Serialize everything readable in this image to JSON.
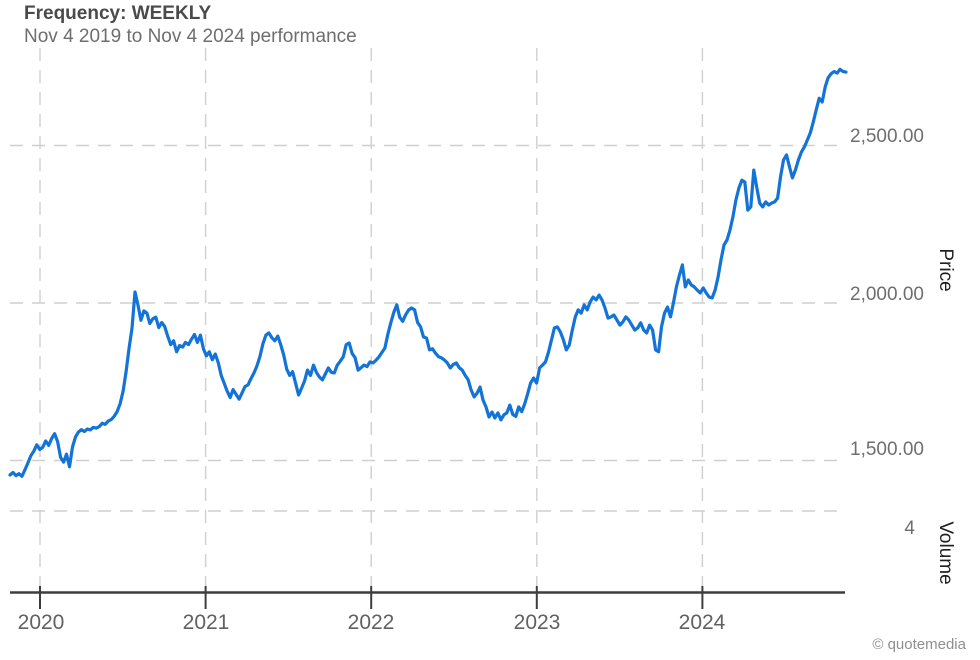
{
  "header": {
    "title": "Frequency: WEEKLY",
    "subtitle": "Nov 4 2019 to Nov 4 2024 performance"
  },
  "watermark": "© quotemedia",
  "chart_data": {
    "type": "line",
    "title": "Frequency: WEEKLY",
    "subtitle": "Nov 4 2019 to Nov 4 2024 performance",
    "legend": "none",
    "grid": "dashed",
    "line_color": "#1373d6",
    "grid_color": "#cfcfcf",
    "axis_color": "#3d3d3d",
    "x_start_year": 2019.82,
    "x_end_year": 2024.87,
    "x_ticks": [
      {
        "value": 2020,
        "label": "2020"
      },
      {
        "value": 2021,
        "label": "2021"
      },
      {
        "value": 2022,
        "label": "2022"
      },
      {
        "value": 2023,
        "label": "2023"
      },
      {
        "value": 2024,
        "label": "2024"
      }
    ],
    "price_axis": {
      "label": "Price",
      "ticks": [
        {
          "value": 2500,
          "label": "2,500.00"
        },
        {
          "value": 2000,
          "label": "2,000.00"
        },
        {
          "value": 1500,
          "label": "1,500.00"
        }
      ]
    },
    "volume_axis": {
      "label": "Volume",
      "ticks": [
        {
          "value": 4,
          "label": "4"
        }
      ]
    },
    "series": [
      {
        "name": "price",
        "frequency": "weekly",
        "values": [
          1454,
          1462,
          1452,
          1458,
          1450,
          1470,
          1492,
          1515,
          1530,
          1550,
          1535,
          1542,
          1562,
          1548,
          1570,
          1585,
          1560,
          1510,
          1495,
          1520,
          1480,
          1543,
          1575,
          1590,
          1598,
          1592,
          1600,
          1597,
          1605,
          1603,
          1608,
          1618,
          1615,
          1625,
          1630,
          1640,
          1655,
          1680,
          1720,
          1780,
          1855,
          1920,
          2035,
          1995,
          1945,
          1975,
          1968,
          1935,
          1950,
          1955,
          1922,
          1938,
          1925,
          1895,
          1868,
          1880,
          1845,
          1865,
          1860,
          1875,
          1868,
          1885,
          1900,
          1875,
          1898,
          1855,
          1832,
          1845,
          1820,
          1838,
          1810,
          1770,
          1745,
          1720,
          1700,
          1725,
          1710,
          1695,
          1715,
          1735,
          1740,
          1760,
          1778,
          1800,
          1830,
          1870,
          1898,
          1905,
          1890,
          1880,
          1895,
          1868,
          1835,
          1790,
          1770,
          1782,
          1745,
          1708,
          1730,
          1752,
          1787,
          1770,
          1803,
          1780,
          1765,
          1756,
          1775,
          1794,
          1780,
          1778,
          1803,
          1815,
          1829,
          1868,
          1873,
          1840,
          1826,
          1787,
          1795,
          1803,
          1798,
          1813,
          1810,
          1818,
          1829,
          1843,
          1857,
          1900,
          1937,
          1970,
          1994,
          1955,
          1942,
          1963,
          1978,
          1984,
          1978,
          1938,
          1924,
          1892,
          1889,
          1851,
          1855,
          1841,
          1830,
          1826,
          1819,
          1810,
          1794,
          1805,
          1810,
          1795,
          1787,
          1770,
          1756,
          1724,
          1702,
          1714,
          1733,
          1692,
          1670,
          1638,
          1654,
          1635,
          1651,
          1629,
          1645,
          1651,
          1676,
          1646,
          1640,
          1670,
          1655,
          1680,
          1712,
          1746,
          1762,
          1746,
          1794,
          1803,
          1813,
          1844,
          1883,
          1921,
          1924,
          1908,
          1883,
          1851,
          1867,
          1914,
          1956,
          1978,
          1968,
          1994,
          1978,
          2003,
          2019,
          2010,
          2025,
          2010,
          1984,
          1952,
          1956,
          1962,
          1946,
          1930,
          1940,
          1956,
          1946,
          1930,
          1914,
          1921,
          1937,
          1914,
          1905,
          1930,
          1914,
          1851,
          1845,
          1924,
          1968,
          1987,
          1956,
          2000,
          2051,
          2088,
          2121,
          2051,
          2073,
          2057,
          2051,
          2041,
          2032,
          2048,
          2032,
          2019,
          2016,
          2041,
          2083,
          2137,
          2184,
          2200,
          2232,
          2273,
          2327,
          2365,
          2390,
          2384,
          2295,
          2305,
          2422,
          2368,
          2317,
          2305,
          2321,
          2311,
          2317,
          2321,
          2333,
          2400,
          2454,
          2470,
          2432,
          2397,
          2422,
          2454,
          2479,
          2495,
          2517,
          2540,
          2575,
          2613,
          2650,
          2638,
          2686,
          2715,
          2728,
          2735,
          2730,
          2742,
          2735,
          2733
        ]
      }
    ]
  }
}
